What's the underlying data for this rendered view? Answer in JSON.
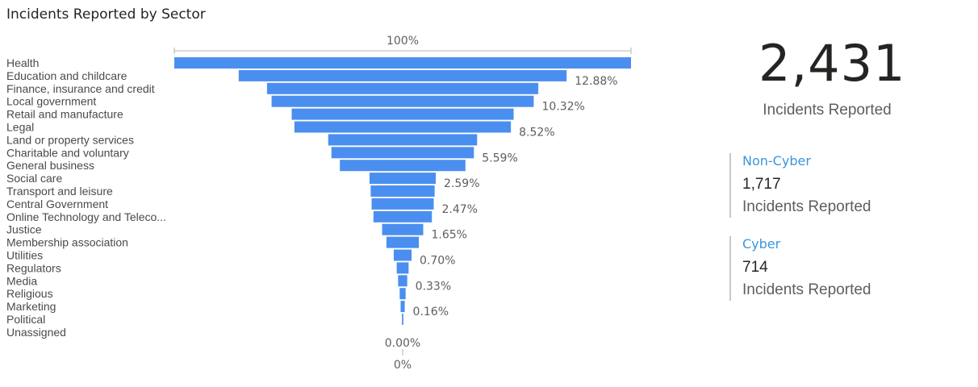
{
  "title": "Incidents Reported by Sector",
  "colors": {
    "bar": "#4a8ff0",
    "axis": "#b3b3b3"
  },
  "chart_data": {
    "type": "funnel",
    "title": "Incidents Reported by Sector",
    "top_label": "100%",
    "bottom_label": "0%",
    "categories": [
      "Health",
      "Education and childcare",
      "Finance, insurance and credit",
      "Local government",
      "Retail and manufacture",
      "Legal",
      "Land or property services",
      "Charitable and voluntary",
      "General business",
      "Social care",
      "Transport and leisure",
      "Central Government",
      "Online Technology and Teleco...",
      "Justice",
      "Membership association",
      "Utilities",
      "Regulators",
      "Media",
      "Religious",
      "Marketing",
      "Political",
      "Unassigned"
    ],
    "values_pct": [
      100,
      71.8,
      59.4,
      57.4,
      48.6,
      47.4,
      32.6,
      31.2,
      27.5,
      14.5,
      14.0,
      13.6,
      12.8,
      9.0,
      7.1,
      3.9,
      2.6,
      2.0,
      1.3,
      0.9,
      0.25,
      0.0
    ],
    "data_labels": [
      "",
      "12.88%",
      "",
      "10.32%",
      "",
      "8.52%",
      "",
      "5.59%",
      "",
      "2.59%",
      "",
      "2.47%",
      "",
      "1.65%",
      "",
      "0.70%",
      "",
      "0.33%",
      "",
      "0.16%",
      "",
      "0.00%"
    ]
  },
  "kpi": {
    "total_value": "2,431",
    "total_label": "Incidents Reported",
    "cards": [
      {
        "title": "Non-Cyber",
        "value": "1,717",
        "label": "Incidents Reported"
      },
      {
        "title": "Cyber",
        "value": "714",
        "label": "Incidents Reported"
      }
    ]
  }
}
